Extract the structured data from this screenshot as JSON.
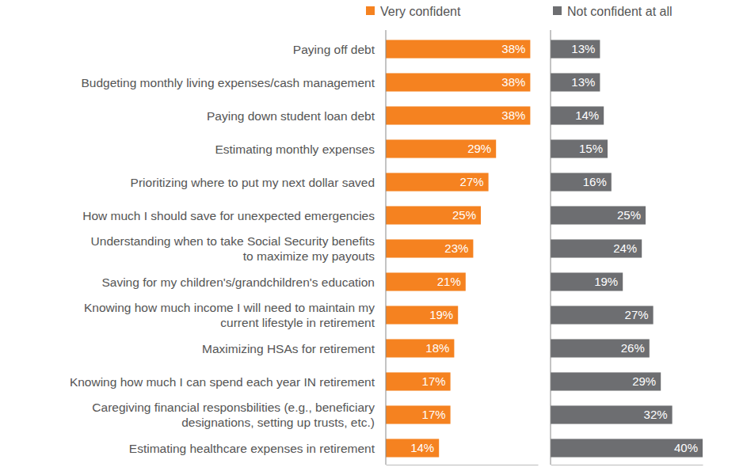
{
  "chart_data": {
    "type": "bar",
    "orientation": "horizontal",
    "data_labels": true,
    "tick_labels": "y",
    "legend": "top",
    "xlim": [
      0,
      40
    ],
    "categories": [
      "Paying off debt",
      "Budgeting monthly living expenses/cash management",
      "Paying down student loan debt",
      "Estimating monthly expenses",
      "Prioritizing where to put my next dollar saved",
      "How much I should save for unexpected emergencies",
      "Understanding when to take Social Security benefits\nto maximize my payouts",
      "Saving for my children's/grandchildren's education",
      "Knowing how much income I will need to maintain my\ncurrent lifestyle in retirement",
      "Maximizing HSAs for retirement",
      "Knowing how much I can spend each year IN retirement",
      "Caregiving financial responsbilities (e.g., beneficiary\ndesignations, setting up trusts, etc.)",
      "Estimating healthcare expenses in retirement"
    ],
    "series": [
      {
        "name": "Very confident",
        "color": "#f58220",
        "values": [
          38,
          38,
          38,
          29,
          27,
          25,
          23,
          21,
          19,
          18,
          17,
          17,
          14
        ],
        "value_labels": [
          "38%",
          "38%",
          "38%",
          "29%",
          "27%",
          "25%",
          "23%",
          "21%",
          "19%",
          "18%",
          "17%",
          "17%",
          "14%"
        ]
      },
      {
        "name": "Not confident at all",
        "color": "#6d6e71",
        "values": [
          13,
          13,
          14,
          15,
          16,
          25,
          24,
          19,
          27,
          26,
          29,
          32,
          40
        ],
        "value_labels": [
          "13%",
          "13%",
          "14%",
          "15%",
          "16%",
          "25%",
          "24%",
          "19%",
          "27%",
          "26%",
          "29%",
          "32%",
          "40%"
        ]
      }
    ]
  }
}
